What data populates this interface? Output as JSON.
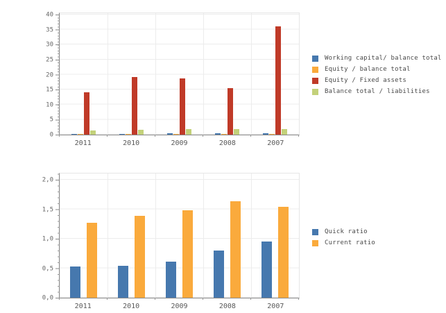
{
  "page": {
    "background": "#ffffff",
    "text_color": "#4a4a4a",
    "axis_color": "#8a8a8a",
    "grid_color": "#ececec"
  },
  "chart_data": [
    {
      "type": "bar",
      "title": "",
      "xlabel": "",
      "ylabel": "",
      "categories": [
        "2011",
        "2010",
        "2009",
        "2008",
        "2007"
      ],
      "series": [
        {
          "name": "Working capital/ balance total",
          "color": "#4678AE",
          "values": [
            0.2,
            0.2,
            0.4,
            0.4,
            0.4
          ]
        },
        {
          "name": "Equity / balance total",
          "color": "#FAAA3C",
          "values": [
            0.1,
            0.1,
            0.2,
            0.2,
            0.2
          ]
        },
        {
          "name": "Equity / Fixed assets",
          "color": "#C03A28",
          "values": [
            14.2,
            19.1,
            18.8,
            15.5,
            36.0
          ]
        },
        {
          "name": "Balance total / liabilities",
          "color": "#C3D17A",
          "values": [
            1.5,
            1.6,
            1.8,
            1.8,
            1.8
          ]
        }
      ],
      "ylim": [
        0,
        40
      ],
      "yticks": [
        {
          "value": 0,
          "label": "0"
        },
        {
          "value": 5,
          "label": "5"
        },
        {
          "value": 10,
          "label": "10"
        },
        {
          "value": 15,
          "label": "15"
        },
        {
          "value": 20,
          "label": "20"
        },
        {
          "value": 25,
          "label": "25"
        },
        {
          "value": 30,
          "label": "30"
        },
        {
          "value": 35,
          "label": "35"
        },
        {
          "value": 40,
          "label": "40"
        }
      ],
      "grid": true,
      "legend_position": "right"
    },
    {
      "type": "bar",
      "title": "",
      "xlabel": "",
      "ylabel": "",
      "categories": [
        "2011",
        "2010",
        "2009",
        "2008",
        "2007"
      ],
      "series": [
        {
          "name": "Quick ratio",
          "color": "#4678AE",
          "values": [
            0.53,
            0.54,
            0.61,
            0.8,
            0.95
          ]
        },
        {
          "name": "Current ratio",
          "color": "#FAAA3C",
          "values": [
            1.27,
            1.39,
            1.48,
            1.64,
            1.54
          ]
        }
      ],
      "ylim": [
        0,
        2
      ],
      "yticks": [
        {
          "value": 0,
          "label": "0,0"
        },
        {
          "value": 0.5,
          "label": "0,5"
        },
        {
          "value": 1,
          "label": "1,0"
        },
        {
          "value": 1.5,
          "label": "1,5"
        },
        {
          "value": 2,
          "label": "2,0"
        }
      ],
      "grid": true,
      "legend_position": "right"
    }
  ]
}
